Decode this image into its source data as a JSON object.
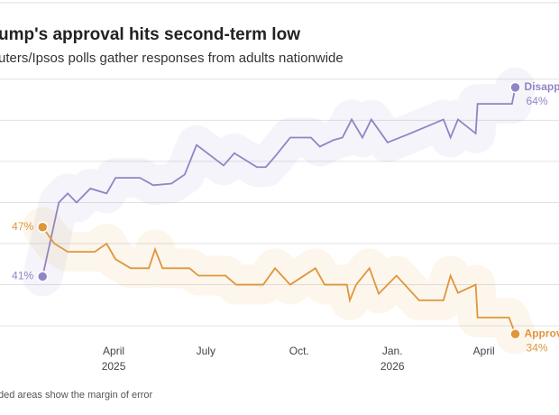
{
  "chart_data": {
    "type": "line",
    "title": "ump's approval hits second-term low",
    "subtitle": "uters/Ipsos polls gather responses from adults nationwide",
    "note": "ded areas show the margin of error",
    "xlim": [
      2024.94,
      2026.45
    ],
    "ylim": [
      31.5,
      67.5
    ],
    "yticks": [
      35,
      40,
      45,
      50,
      55,
      60,
      65
    ],
    "grid": true,
    "xticks": [
      {
        "value": 2025.247,
        "label": "April"
      },
      {
        "value": 2025.496,
        "label": "July"
      },
      {
        "value": 2025.748,
        "label": "Oct."
      },
      {
        "value": 2026.0,
        "label": "Jan."
      },
      {
        "value": 2026.247,
        "label": "April"
      }
    ],
    "xticks_year": [
      {
        "value": 2025.247,
        "label": "2025"
      },
      {
        "value": 2026.0,
        "label": "2026"
      }
    ],
    "series": [
      {
        "name": "Disapp",
        "color": "#9184c6",
        "x": [
          2025.055,
          2025.099,
          2025.123,
          2025.147,
          2025.184,
          2025.228,
          2025.252,
          2025.318,
          2025.354,
          2025.403,
          2025.439,
          2025.471,
          2025.512,
          2025.544,
          2025.573,
          2025.634,
          2025.658,
          2025.683,
          2025.724,
          2025.78,
          2025.804,
          2025.841,
          2025.865,
          2025.89,
          2025.919,
          2025.943,
          2025.987,
          2026.048,
          2026.138,
          2026.157,
          2026.177,
          2026.225,
          2026.23,
          2026.323,
          2026.332
        ],
        "values": [
          41,
          50,
          51.1,
          50,
          51.7,
          51.1,
          53,
          53,
          52.1,
          52.3,
          53.4,
          57,
          55.6,
          54.5,
          56,
          54.3,
          54.3,
          55.6,
          57.9,
          57.9,
          56.8,
          57.6,
          57.9,
          60.1,
          57.9,
          60.1,
          57.3,
          58.4,
          60.1,
          57.9,
          60.1,
          58.4,
          62,
          62,
          64
        ],
        "value_labels": [
          "41%",
          null,
          null,
          null,
          null,
          null,
          null,
          null,
          null,
          null,
          null,
          null,
          null,
          null,
          null,
          null,
          null,
          null,
          null,
          null,
          null,
          null,
          null,
          null,
          null,
          null,
          null,
          null,
          null,
          null,
          null,
          null,
          null,
          null,
          "64%"
        ]
      },
      {
        "name": "Approv",
        "color": "#e0963a",
        "x": [
          2025.055,
          2025.087,
          2025.123,
          2025.196,
          2025.228,
          2025.252,
          2025.293,
          2025.342,
          2025.359,
          2025.379,
          2025.452,
          2025.476,
          2025.549,
          2025.578,
          2025.651,
          2025.683,
          2025.724,
          2025.792,
          2025.817,
          2025.877,
          2025.885,
          2025.902,
          2025.938,
          2025.963,
          2026.011,
          2026.072,
          2026.138,
          2026.157,
          2026.177,
          2026.225,
          2026.23,
          2026.315,
          2026.332
        ],
        "values": [
          47,
          45,
          44,
          44,
          45,
          43.1,
          42,
          42,
          44.3,
          42,
          42,
          41.1,
          41.1,
          40,
          40,
          42,
          40,
          42,
          40,
          40,
          38.1,
          40,
          42,
          38.9,
          41.1,
          38.1,
          38.1,
          41.1,
          39,
          40,
          36,
          36,
          34
        ],
        "value_labels": [
          "47%",
          null,
          null,
          null,
          null,
          null,
          null,
          null,
          null,
          null,
          null,
          null,
          null,
          null,
          null,
          null,
          null,
          null,
          null,
          null,
          null,
          null,
          null,
          null,
          null,
          null,
          null,
          null,
          null,
          null,
          null,
          null,
          "34%"
        ]
      }
    ]
  }
}
